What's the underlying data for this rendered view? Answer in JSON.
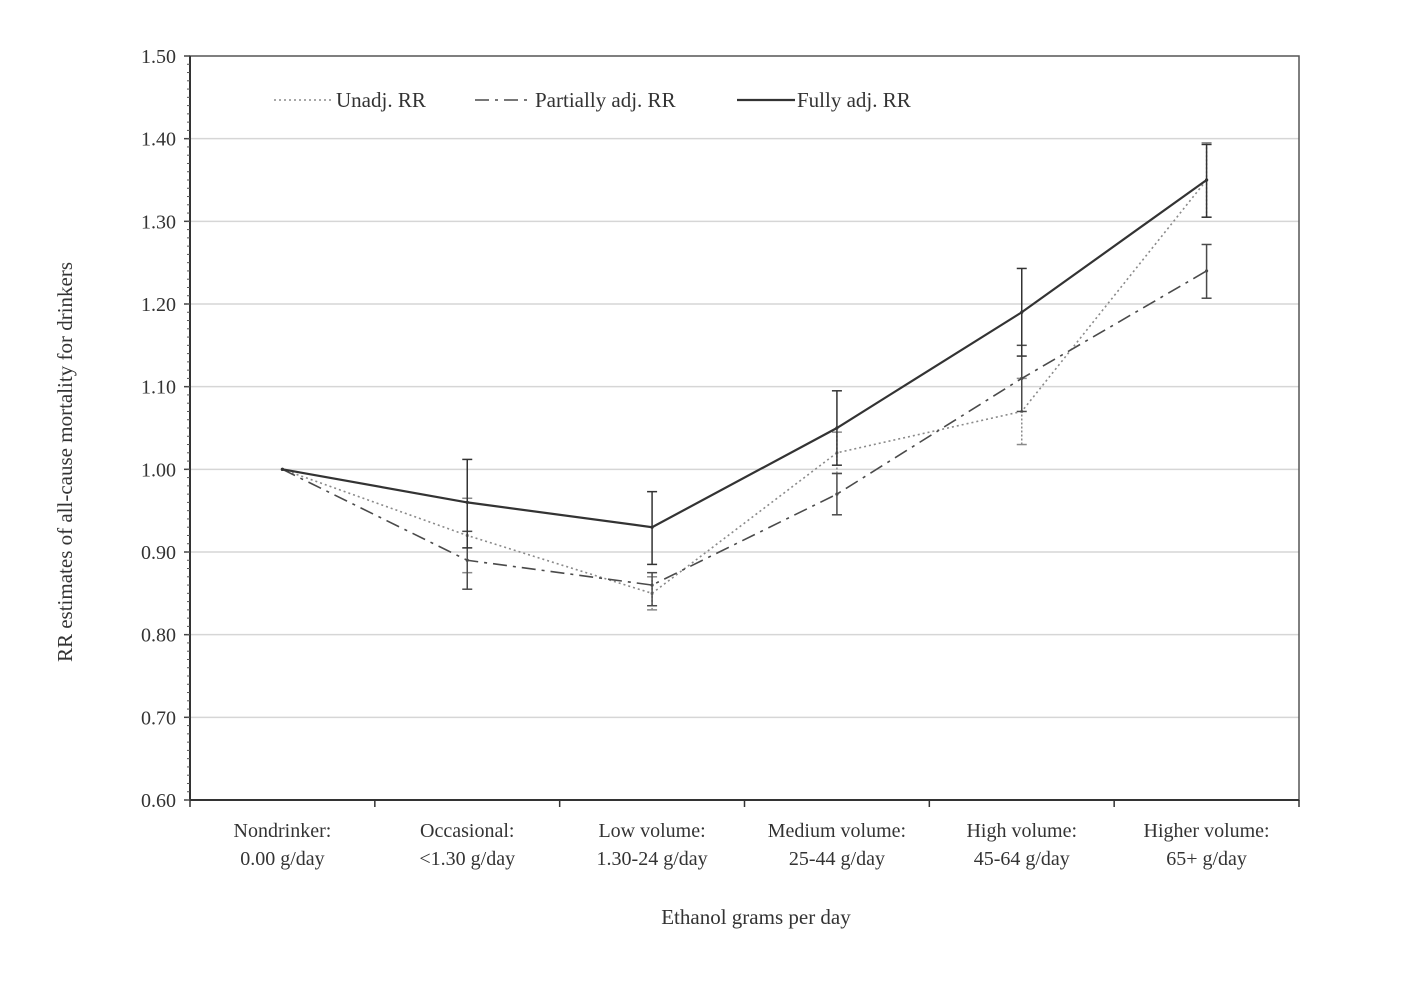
{
  "chart_data": {
    "type": "line",
    "title": "",
    "xlabel": "Ethanol grams per day",
    "ylabel": "RR estimates of all-cause mortality for drinkers",
    "ylim": [
      0.6,
      1.5
    ],
    "yticks": [
      "0.60",
      "0.70",
      "0.80",
      "0.90",
      "1.00",
      "1.10",
      "1.20",
      "1.30",
      "1.40",
      "1.50"
    ],
    "grid": true,
    "legend_position": "top-left",
    "categories": [
      [
        "Nondrinker:",
        "0.00 g/day"
      ],
      [
        "Occasional:",
        "<1.30 g/day"
      ],
      [
        "Low volume:",
        "1.30-24 g/day"
      ],
      [
        "Medium volume:",
        "25-44 g/day"
      ],
      [
        "High volume:",
        "45-64 g/day"
      ],
      [
        "Higher volume:",
        "65+ g/day"
      ]
    ],
    "series": [
      {
        "name": "Unadj. RR",
        "style": "dotted",
        "color": "#8a8a8a",
        "values": [
          1.0,
          0.92,
          0.85,
          1.02,
          1.07,
          1.35
        ],
        "lower": [
          1.0,
          0.875,
          0.83,
          0.995,
          1.03,
          1.305
        ],
        "upper": [
          1.0,
          0.965,
          0.87,
          1.045,
          1.11,
          1.395
        ]
      },
      {
        "name": "Partially adj. RR",
        "style": "dashdot",
        "color": "#4a4a4a",
        "values": [
          1.0,
          0.89,
          0.86,
          0.97,
          1.11,
          1.24
        ],
        "lower": [
          1.0,
          0.855,
          0.835,
          0.945,
          1.07,
          1.207
        ],
        "upper": [
          1.0,
          0.925,
          0.875,
          0.995,
          1.15,
          1.272
        ]
      },
      {
        "name": "Fully adj. RR",
        "style": "solid",
        "color": "#333333",
        "values": [
          1.0,
          0.96,
          0.93,
          1.05,
          1.19,
          1.35
        ],
        "lower": [
          1.0,
          0.905,
          0.885,
          1.005,
          1.137,
          1.305
        ],
        "upper": [
          1.0,
          1.012,
          0.973,
          1.095,
          1.243,
          1.393
        ]
      }
    ]
  }
}
